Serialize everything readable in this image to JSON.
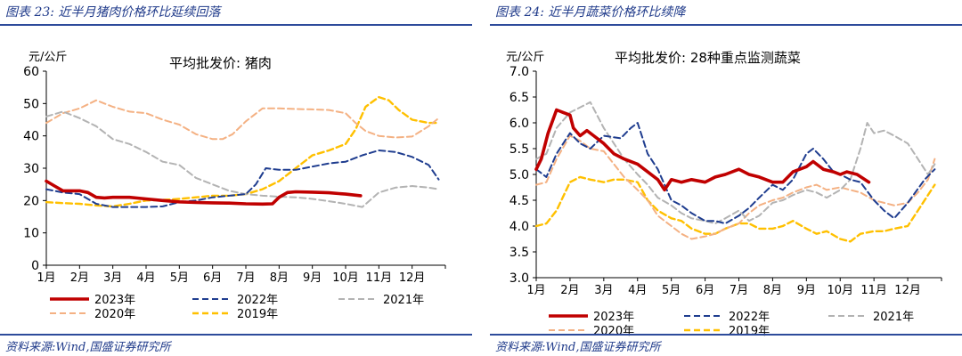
{
  "panels": [
    {
      "figure_title": "图表 23:  近半月猪肉价格环比延续回落",
      "source": "资料来源:Wind,国盛证券研究所"
    },
    {
      "figure_title": "图表 24:  近半月蔬菜价格环比续降",
      "source": "资料来源:Wind,国盛证券研究所"
    }
  ],
  "chart_data": [
    {
      "type": "line",
      "title": "平均批发价:  猪肉",
      "ylabel": "元/公斤",
      "xlabel": "",
      "ylim": [
        0,
        60
      ],
      "yticks": [
        0,
        10,
        20,
        30,
        40,
        50,
        60
      ],
      "xlim": [
        1,
        13
      ],
      "xticks": [
        1,
        2,
        3,
        4,
        5,
        6,
        7,
        8,
        9,
        10,
        11,
        12
      ],
      "xtick_labels": [
        "1月",
        "2月",
        "3月",
        "4月",
        "5月",
        "6月",
        "7月",
        "8月",
        "9月",
        "10月",
        "11月",
        "12月"
      ],
      "grid": false,
      "legend_position": "bottom",
      "series": [
        {
          "name": "2023年",
          "color": "#c00000",
          "dash": "solid",
          "width": 3.6,
          "x": [
            1,
            1.25,
            1.5,
            1.75,
            2,
            2.25,
            2.5,
            2.75,
            3,
            3.5,
            4,
            4.5,
            5,
            5.5,
            6,
            6.5,
            7,
            7.5,
            7.8,
            8,
            8.25,
            8.5,
            9,
            9.5,
            10,
            10.45
          ],
          "y": [
            26,
            24.5,
            23,
            23,
            23,
            22.5,
            21,
            20.8,
            21,
            21,
            20.5,
            20,
            19.6,
            19.4,
            19.3,
            19.2,
            19,
            18.9,
            19,
            21,
            22.5,
            22.7,
            22.6,
            22.4,
            22,
            21.5
          ]
        },
        {
          "name": "2022年",
          "color": "#1f3d8f",
          "dash": "7,4",
          "width": 2,
          "x": [
            1,
            1.5,
            2,
            2.5,
            3,
            3.5,
            4,
            4.5,
            5,
            5.5,
            6,
            6.5,
            7,
            7.3,
            7.6,
            8,
            8.5,
            9,
            9.5,
            10,
            10.5,
            11,
            11.5,
            12,
            12.5,
            12.8
          ],
          "y": [
            23.5,
            22.5,
            22,
            19,
            18,
            18,
            18,
            18.2,
            19.5,
            20,
            21,
            21.5,
            22,
            25,
            30,
            29.5,
            29.5,
            30.5,
            31.5,
            32,
            34,
            35.5,
            35,
            33.5,
            31,
            26.5
          ]
        },
        {
          "name": "2021年",
          "color": "#b3b3b3",
          "dash": "7,4",
          "width": 2,
          "x": [
            1,
            1.5,
            2,
            2.5,
            3,
            3.5,
            4,
            4.5,
            5,
            5.5,
            6,
            6.5,
            7,
            7.5,
            8,
            8.5,
            9,
            9.5,
            10,
            10.5,
            11,
            11.5,
            12,
            12.5,
            12.8
          ],
          "y": [
            46,
            47.5,
            45.5,
            43,
            39,
            37.5,
            35,
            32,
            31,
            27,
            25,
            23,
            22,
            21.5,
            21.2,
            21,
            20.5,
            19.8,
            19,
            18,
            22.5,
            24,
            24.5,
            24,
            23.5
          ]
        },
        {
          "name": "2020年",
          "color": "#f4b183",
          "dash": "7,4",
          "width": 2,
          "x": [
            1,
            1.5,
            2,
            2.5,
            3,
            3.5,
            4,
            4.5,
            5,
            5.5,
            6,
            6.3,
            6.6,
            7,
            7.5,
            8,
            8.5,
            9,
            9.5,
            10,
            10.3,
            10.6,
            11,
            11.5,
            12,
            12.5,
            12.8
          ],
          "y": [
            44,
            47,
            48.5,
            51,
            49,
            47.5,
            47,
            45,
            43.5,
            40.5,
            39,
            39,
            40.5,
            44.5,
            48.5,
            48.5,
            48.3,
            48.2,
            48,
            47,
            44,
            41.5,
            40,
            39.5,
            39.8,
            43,
            45.5
          ]
        },
        {
          "name": "2019年",
          "color": "#ffc000",
          "dash": "7,4",
          "width": 2.4,
          "x": [
            1,
            1.5,
            2,
            2.5,
            3,
            3.5,
            4,
            4.5,
            5,
            5.5,
            6,
            6.5,
            7,
            7.5,
            8,
            8.5,
            9,
            9.5,
            10,
            10.3,
            10.6,
            11,
            11.3,
            11.6,
            12,
            12.5,
            12.8
          ],
          "y": [
            19.5,
            19.2,
            19,
            18.5,
            18.2,
            19,
            20,
            20.2,
            20.5,
            21,
            21.5,
            21.5,
            22,
            23.5,
            26,
            30,
            34,
            35.5,
            37.5,
            42,
            49,
            52,
            51,
            48,
            45,
            44,
            44
          ]
        }
      ]
    },
    {
      "type": "line",
      "title": "平均批发价:  28种重点监测蔬菜",
      "ylabel": "元/公斤",
      "xlabel": "",
      "ylim": [
        3.0,
        7.0
      ],
      "yticks": [
        3.0,
        3.5,
        4.0,
        4.5,
        5.0,
        5.5,
        6.0,
        6.5,
        7.0
      ],
      "ytick_decimals": 1,
      "xlim": [
        1,
        13
      ],
      "xticks": [
        1,
        2,
        3,
        4,
        5,
        6,
        7,
        8,
        9,
        10,
        11,
        12
      ],
      "xtick_labels": [
        "1月",
        "2月",
        "3月",
        "4月",
        "5月",
        "6月",
        "7月",
        "8月",
        "9月",
        "10月",
        "11月",
        "12月"
      ],
      "grid": false,
      "legend_position": "bottom",
      "series": [
        {
          "name": "2023年",
          "color": "#c00000",
          "dash": "solid",
          "width": 3.6,
          "x": [
            1,
            1.15,
            1.35,
            1.6,
            1.8,
            2,
            2.1,
            2.3,
            2.5,
            2.7,
            3,
            3.3,
            3.6,
            4,
            4.3,
            4.6,
            4.8,
            5,
            5.3,
            5.6,
            6,
            6.3,
            6.6,
            7,
            7.3,
            7.6,
            8,
            8.3,
            8.6,
            9,
            9.2,
            9.5,
            9.8,
            10,
            10.2,
            10.5,
            10.85
          ],
          "y": [
            5.1,
            5.3,
            5.8,
            6.25,
            6.2,
            6.15,
            5.9,
            5.75,
            5.85,
            5.75,
            5.6,
            5.4,
            5.3,
            5.2,
            5.05,
            4.9,
            4.7,
            4.9,
            4.85,
            4.9,
            4.85,
            4.95,
            5.0,
            5.1,
            5.0,
            4.95,
            4.85,
            4.85,
            5.05,
            5.15,
            5.25,
            5.1,
            5.05,
            5.0,
            5.05,
            5.0,
            4.85
          ]
        },
        {
          "name": "2022年",
          "color": "#1f3d8f",
          "dash": "7,4",
          "width": 2,
          "x": [
            1,
            1.3,
            1.6,
            2,
            2.3,
            2.6,
            3,
            3.5,
            3.8,
            4,
            4.3,
            4.6,
            5,
            5.3,
            5.6,
            6,
            6.3,
            6.6,
            7,
            7.3,
            7.6,
            8,
            8.3,
            8.6,
            9,
            9.2,
            9.5,
            9.8,
            10,
            10.3,
            10.6,
            11,
            11.3,
            11.6,
            12,
            12.5,
            12.8
          ],
          "y": [
            5.1,
            4.95,
            5.4,
            5.8,
            5.6,
            5.5,
            5.75,
            5.7,
            5.9,
            6.0,
            5.4,
            5.1,
            4.5,
            4.4,
            4.25,
            4.1,
            4.1,
            4.05,
            4.2,
            4.35,
            4.55,
            4.8,
            4.7,
            4.9,
            5.4,
            5.5,
            5.3,
            5.05,
            5.0,
            4.9,
            4.85,
            4.5,
            4.3,
            4.15,
            4.45,
            4.9,
            5.1
          ]
        },
        {
          "name": "2021年",
          "color": "#b3b3b3",
          "dash": "7,4",
          "width": 2,
          "x": [
            1,
            1.3,
            1.6,
            2,
            2.3,
            2.6,
            3,
            3.3,
            3.6,
            4,
            4.3,
            4.6,
            5,
            5.3,
            5.6,
            6,
            6.3,
            6.6,
            7,
            7.3,
            7.6,
            8,
            8.3,
            8.6,
            9,
            9.3,
            9.6,
            10,
            10.3,
            10.6,
            10.8,
            11,
            11.3,
            11.6,
            12,
            12.3,
            12.6,
            12.8
          ],
          "y": [
            5.3,
            5.4,
            5.9,
            6.2,
            6.3,
            6.4,
            5.9,
            5.6,
            5.3,
            5.0,
            4.8,
            4.55,
            4.4,
            4.25,
            4.15,
            4.1,
            4.05,
            4.15,
            4.3,
            4.1,
            4.2,
            4.45,
            4.5,
            4.6,
            4.7,
            4.65,
            4.55,
            4.7,
            4.9,
            5.5,
            6.0,
            5.8,
            5.85,
            5.75,
            5.6,
            5.3,
            5.0,
            5.2
          ]
        },
        {
          "name": "2020年",
          "color": "#f4b183",
          "dash": "7,4",
          "width": 2,
          "x": [
            1,
            1.3,
            1.6,
            2,
            2.3,
            2.6,
            3,
            3.3,
            3.6,
            4,
            4.3,
            4.6,
            5,
            5.3,
            5.6,
            6,
            6.3,
            6.6,
            7,
            7.3,
            7.6,
            8,
            8.3,
            8.6,
            9,
            9.3,
            9.6,
            10,
            10.3,
            10.6,
            11,
            11.3,
            11.6,
            12,
            12.3,
            12.6,
            12.8
          ],
          "y": [
            4.8,
            4.85,
            5.3,
            5.75,
            5.65,
            5.5,
            5.45,
            5.2,
            4.95,
            4.7,
            4.5,
            4.2,
            4.0,
            3.85,
            3.75,
            3.8,
            3.85,
            3.95,
            4.05,
            4.25,
            4.4,
            4.5,
            4.55,
            4.65,
            4.75,
            4.8,
            4.7,
            4.75,
            4.7,
            4.65,
            4.5,
            4.45,
            4.4,
            4.45,
            4.65,
            4.9,
            5.3
          ]
        },
        {
          "name": "2019年",
          "color": "#ffc000",
          "dash": "7,4",
          "width": 2.4,
          "x": [
            1,
            1.3,
            1.6,
            2,
            2.3,
            2.6,
            3,
            3.3,
            3.6,
            4,
            4.3,
            4.6,
            5,
            5.3,
            5.6,
            6,
            6.3,
            6.6,
            7,
            7.3,
            7.6,
            8,
            8.3,
            8.6,
            9,
            9.3,
            9.6,
            10,
            10.3,
            10.6,
            11,
            11.3,
            11.6,
            12,
            12.3,
            12.6,
            12.8
          ],
          "y": [
            4.0,
            4.05,
            4.3,
            4.85,
            4.95,
            4.9,
            4.85,
            4.9,
            4.9,
            4.85,
            4.5,
            4.3,
            4.15,
            4.1,
            3.95,
            3.85,
            3.85,
            3.95,
            4.05,
            4.05,
            3.95,
            3.95,
            4.0,
            4.1,
            3.95,
            3.85,
            3.9,
            3.75,
            3.7,
            3.85,
            3.9,
            3.9,
            3.95,
            4.0,
            4.3,
            4.6,
            4.8
          ]
        }
      ]
    }
  ]
}
